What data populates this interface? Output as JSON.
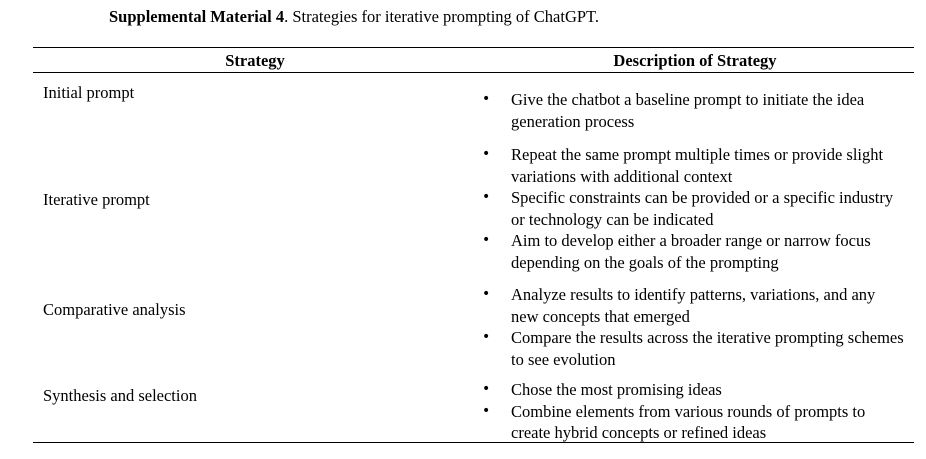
{
  "caption": {
    "label": "Supplemental Material 4",
    "text": ". Strategies for iterative prompting of ChatGPT."
  },
  "table": {
    "headers": [
      "Strategy",
      "Description of Strategy"
    ],
    "rows": [
      {
        "strategy": "Initial prompt",
        "description": [
          "Give the chatbot a baseline prompt to initiate the idea generation process"
        ]
      },
      {
        "strategy": "Iterative prompt",
        "description": [
          "Repeat the same prompt multiple times or provide slight variations with additional context",
          "Specific constraints can be provided or a specific industry or technology can be indicated",
          "Aim to develop either a broader range or narrow focus depending on the goals of the prompting"
        ]
      },
      {
        "strategy": "Comparative analysis",
        "description": [
          "Analyze results to identify patterns, variations, and any new concepts that emerged",
          "Compare the results across the iterative prompting schemes to see evolution"
        ]
      },
      {
        "strategy": "Synthesis and selection",
        "description": [
          "Chose the most promising ideas",
          "Combine elements from various rounds of prompts to create hybrid concepts or refined ideas"
        ]
      }
    ]
  }
}
